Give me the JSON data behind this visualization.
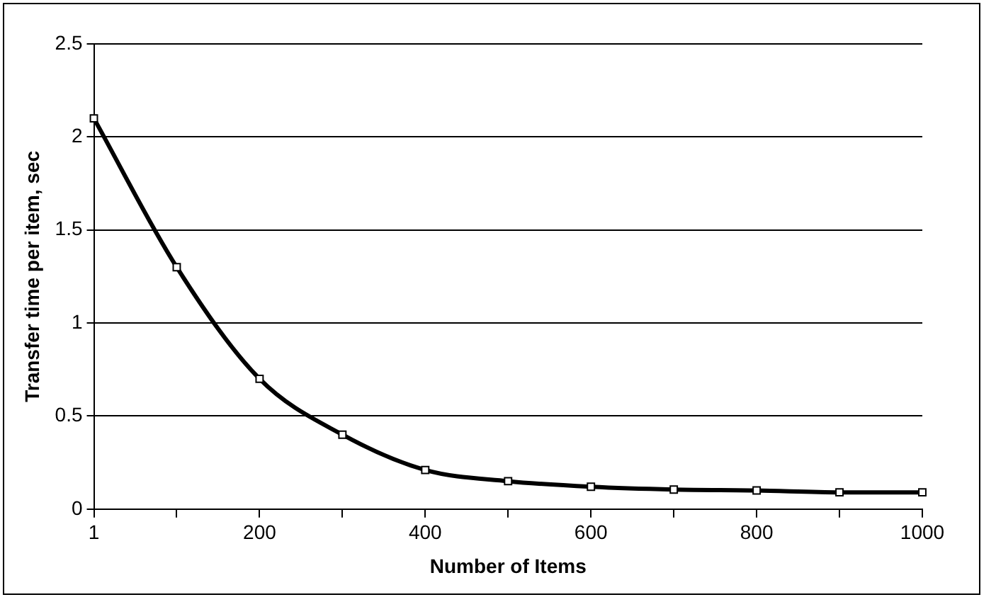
{
  "chart_data": {
    "type": "line",
    "xlabel": "Number of Items",
    "ylabel": "Transfer time per item, sec",
    "categories": [
      "1",
      null,
      "200",
      null,
      "400",
      null,
      "600",
      null,
      "800",
      null,
      "1000"
    ],
    "values": [
      2.1,
      1.3,
      0.7,
      0.4,
      0.21,
      0.15,
      0.12,
      0.105,
      0.1,
      0.09,
      0.09
    ],
    "color": "#000000",
    "ylim": [
      0,
      2.5
    ],
    "yticks": [
      0,
      0.5,
      1,
      1.5,
      2,
      2.5
    ],
    "grid": "y",
    "legend": false,
    "marker": "square",
    "line_style": "solid"
  }
}
